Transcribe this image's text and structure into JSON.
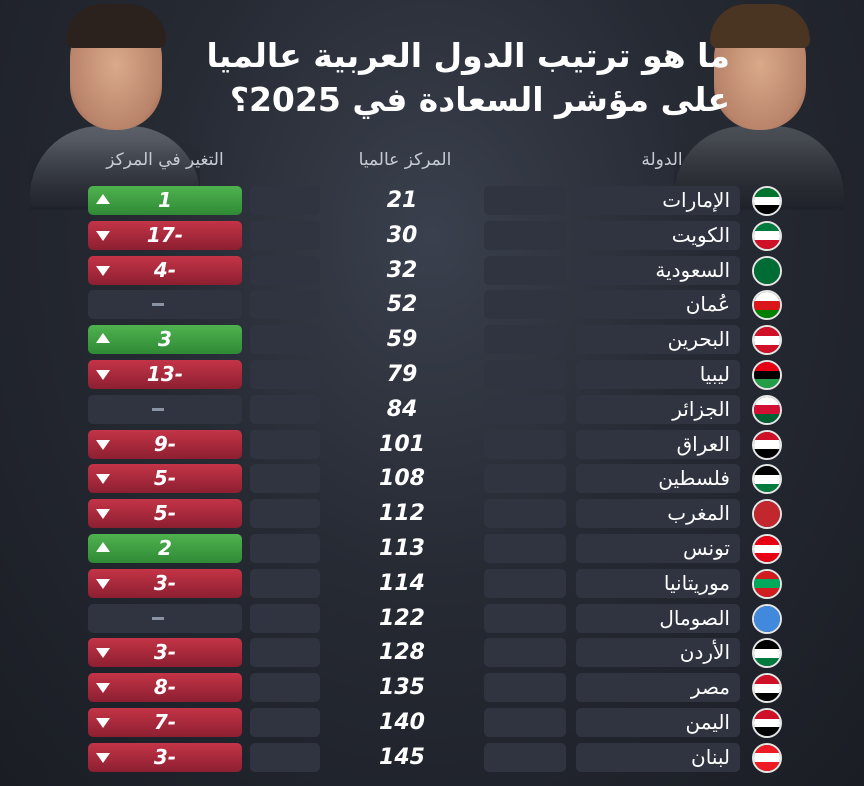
{
  "title": "ما هو ترتيب الدول العربية عالميا على مؤشر السعادة في 2025؟",
  "headers": {
    "country": "الدولة",
    "rank": "المركز عالميا",
    "change": "التغير في المركز"
  },
  "colors": {
    "up": "#3f9f43",
    "down": "#b12a3e",
    "neutral": "#2f3440"
  },
  "rows": [
    {
      "country": "الإمارات",
      "rank": "21",
      "change": "1",
      "dir": "up",
      "flag": [
        "#00732f",
        "#ffffff",
        "#000000"
      ]
    },
    {
      "country": "الكويت",
      "rank": "30",
      "change": "17-",
      "dir": "down",
      "flag": [
        "#007a3d",
        "#ffffff",
        "#ce1126"
      ]
    },
    {
      "country": "السعودية",
      "rank": "32",
      "change": "4-",
      "dir": "down",
      "flag": [
        "#006c35",
        "#006c35",
        "#006c35"
      ]
    },
    {
      "country": "عُمان",
      "rank": "52",
      "change": "",
      "dir": "none",
      "flag": [
        "#ffffff",
        "#db161b",
        "#008000"
      ]
    },
    {
      "country": "البحرين",
      "rank": "59",
      "change": "3",
      "dir": "up",
      "flag": [
        "#ce1126",
        "#ffffff",
        "#ce1126"
      ]
    },
    {
      "country": "ليبيا",
      "rank": "79",
      "change": "13-",
      "dir": "down",
      "flag": [
        "#e70013",
        "#000000",
        "#239e46"
      ]
    },
    {
      "country": "الجزائر",
      "rank": "84",
      "change": "",
      "dir": "none",
      "flag": [
        "#ffffff",
        "#d21034",
        "#006233"
      ]
    },
    {
      "country": "العراق",
      "rank": "101",
      "change": "9-",
      "dir": "down",
      "flag": [
        "#ce1126",
        "#ffffff",
        "#000000"
      ]
    },
    {
      "country": "فلسطين",
      "rank": "108",
      "change": "5-",
      "dir": "down",
      "flag": [
        "#000000",
        "#ffffff",
        "#007a3d"
      ]
    },
    {
      "country": "المغرب",
      "rank": "112",
      "change": "5-",
      "dir": "down",
      "flag": [
        "#c1272d",
        "#c1272d",
        "#c1272d"
      ]
    },
    {
      "country": "تونس",
      "rank": "113",
      "change": "2",
      "dir": "up",
      "flag": [
        "#e70013",
        "#ffffff",
        "#e70013"
      ]
    },
    {
      "country": "موريتانيا",
      "rank": "114",
      "change": "3-",
      "dir": "down",
      "flag": [
        "#d01c1f",
        "#00a95c",
        "#d01c1f"
      ]
    },
    {
      "country": "الصومال",
      "rank": "122",
      "change": "",
      "dir": "none",
      "flag": [
        "#4189dd",
        "#4189dd",
        "#4189dd"
      ]
    },
    {
      "country": "الأردن",
      "rank": "128",
      "change": "3-",
      "dir": "down",
      "flag": [
        "#000000",
        "#ffffff",
        "#007a3d"
      ]
    },
    {
      "country": "مصر",
      "rank": "135",
      "change": "8-",
      "dir": "down",
      "flag": [
        "#ce1126",
        "#ffffff",
        "#000000"
      ]
    },
    {
      "country": "اليمن",
      "rank": "140",
      "change": "7-",
      "dir": "down",
      "flag": [
        "#ce1126",
        "#ffffff",
        "#000000"
      ]
    },
    {
      "country": "لبنان",
      "rank": "145",
      "change": "3-",
      "dir": "down",
      "flag": [
        "#ed1c24",
        "#ffffff",
        "#ed1c24"
      ]
    }
  ]
}
